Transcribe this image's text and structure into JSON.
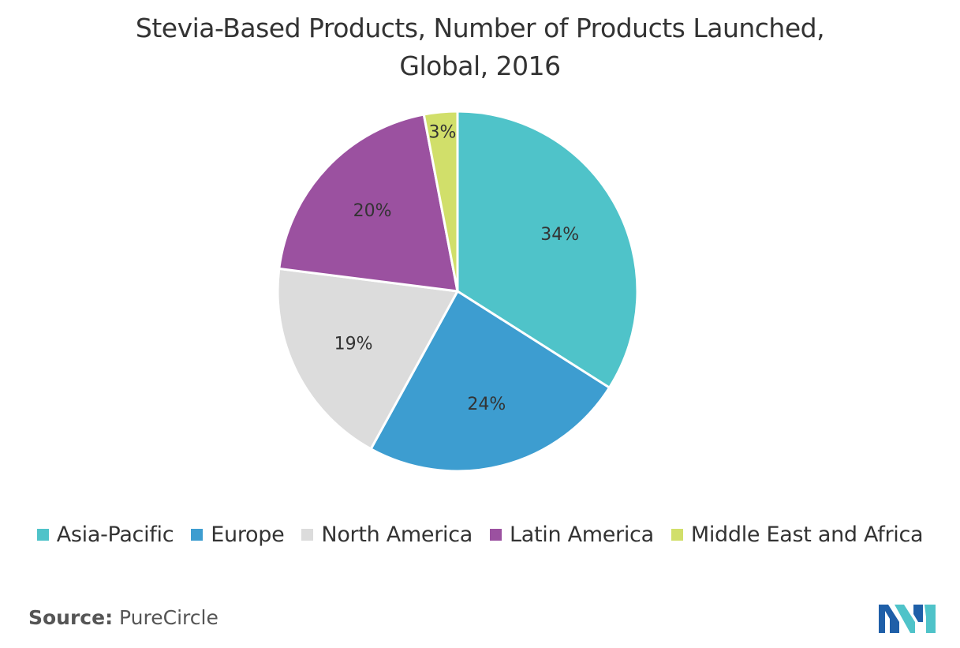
{
  "chart_data": {
    "type": "pie",
    "title": "Stevia-Based Products, Number of Products Launched, Global, 2016",
    "title_lines": [
      "Stevia-Based Products, Number of Products Launched,",
      "Global, 2016"
    ],
    "categories": [
      "Asia-Pacific",
      "Europe",
      "North America",
      "Latin America",
      "Middle East and Africa"
    ],
    "values": [
      34,
      24,
      19,
      20,
      3
    ],
    "data_labels": [
      "34%",
      "24%",
      "19%",
      "20%",
      "3%"
    ],
    "colors": [
      "#4fc3c9",
      "#3d9dd0",
      "#dcdcdc",
      "#9b51a0",
      "#d1df6a"
    ],
    "legend_position": "bottom",
    "start_angle": "12 o'clock",
    "direction": "clockwise"
  },
  "source": {
    "key": "Source:",
    "value": "PureCircle"
  },
  "logo": {
    "icon": "mordor-intelligence-logo-icon",
    "colors": [
      "#1f5fa8",
      "#4fc3c9"
    ]
  }
}
